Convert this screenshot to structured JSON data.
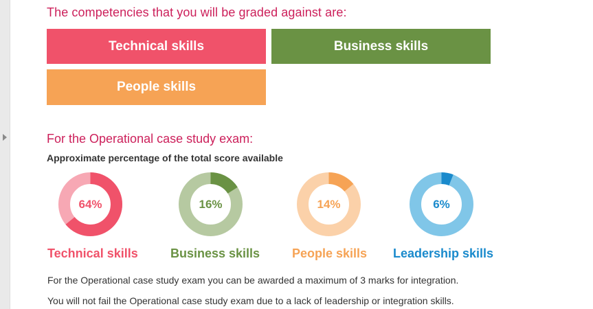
{
  "heading": "The competencies that you will be graded against are:",
  "competencies": [
    {
      "label": "Technical skills",
      "color": "#f0526a"
    },
    {
      "label": "Business skills",
      "color": "#6a9244"
    },
    {
      "label": "People skills",
      "color": "#f6a355"
    }
  ],
  "exam_heading": "For the Operational case study exam:",
  "caption": "Approximate percentage of the total score available",
  "chart_data": {
    "type": "pie",
    "variant": "donut",
    "series": [
      {
        "name": "Technical skills",
        "value": 64,
        "label": "64%",
        "color": "#f0526a",
        "track_color": "#f7a8b4"
      },
      {
        "name": "Business skills",
        "value": 16,
        "label": "16%",
        "color": "#6a9244",
        "track_color": "#b6c9a1"
      },
      {
        "name": "People skills",
        "value": 14,
        "label": "14%",
        "color": "#f6a355",
        "track_color": "#fbd1a9"
      },
      {
        "name": "Leadership skills",
        "value": 6,
        "label": "6%",
        "color": "#1a8acc",
        "track_color": "#80c6e8"
      }
    ]
  },
  "notes": [
    "For the Operational case study exam you can be awarded a maximum of 3 marks for integration.",
    "You will not fail the Operational case study exam due to a lack of leadership or integration skills."
  ]
}
